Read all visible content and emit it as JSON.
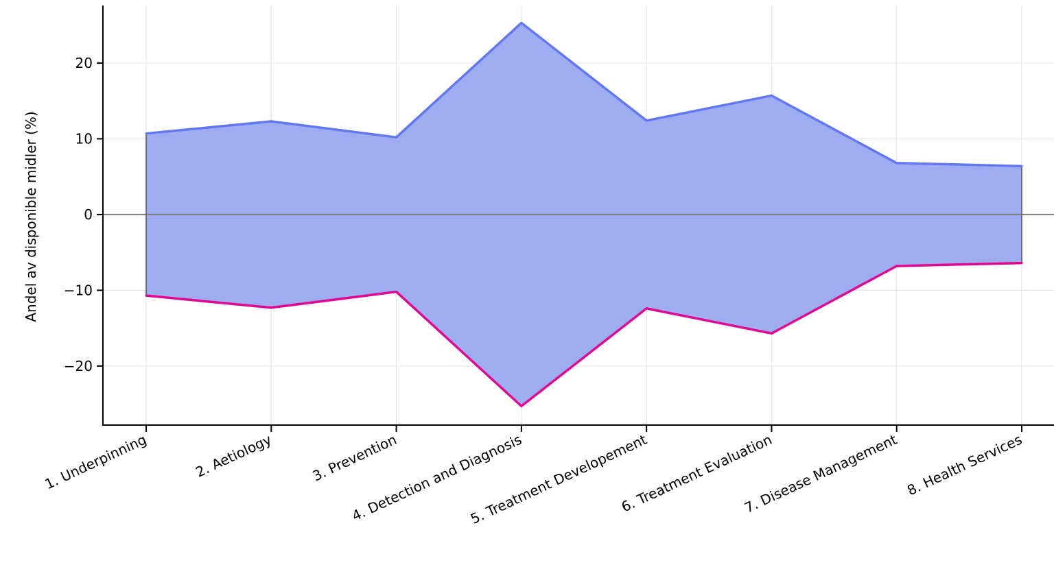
{
  "chart_data": {
    "type": "area",
    "categories": [
      "1. Underpinning",
      "2. Aetiology",
      "3. Prevention",
      "4. Detection and Diagnosis",
      "5. Treatment Developement",
      "6. Treatment Evaluation",
      "7. Disease Management",
      "8. Health Services"
    ],
    "series": [
      {
        "values": [
          10.7,
          12.3,
          10.2,
          25.3,
          12.4,
          15.7,
          6.8,
          6.4
        ]
      },
      {
        "values": [
          -10.7,
          -12.3,
          -10.2,
          -25.3,
          -12.4,
          -15.7,
          -6.8,
          -6.4
        ]
      }
    ],
    "ylabel": "Andel av disponible midler (%)",
    "ylim": [
      -27.8,
      27.6
    ],
    "yticks": [
      20,
      10,
      0,
      -10,
      -20
    ],
    "ytick_labels": [
      "20",
      "10",
      "0",
      "−10",
      "−20"
    ],
    "grid": true,
    "zero_line": true,
    "colors": {
      "upper_line": "#6378f0",
      "lower_line": "#e0068f",
      "fill": "#9eadf2",
      "zero_line": "#808080",
      "grid": "#e6e6e6",
      "drop_lines": "#555555"
    }
  }
}
